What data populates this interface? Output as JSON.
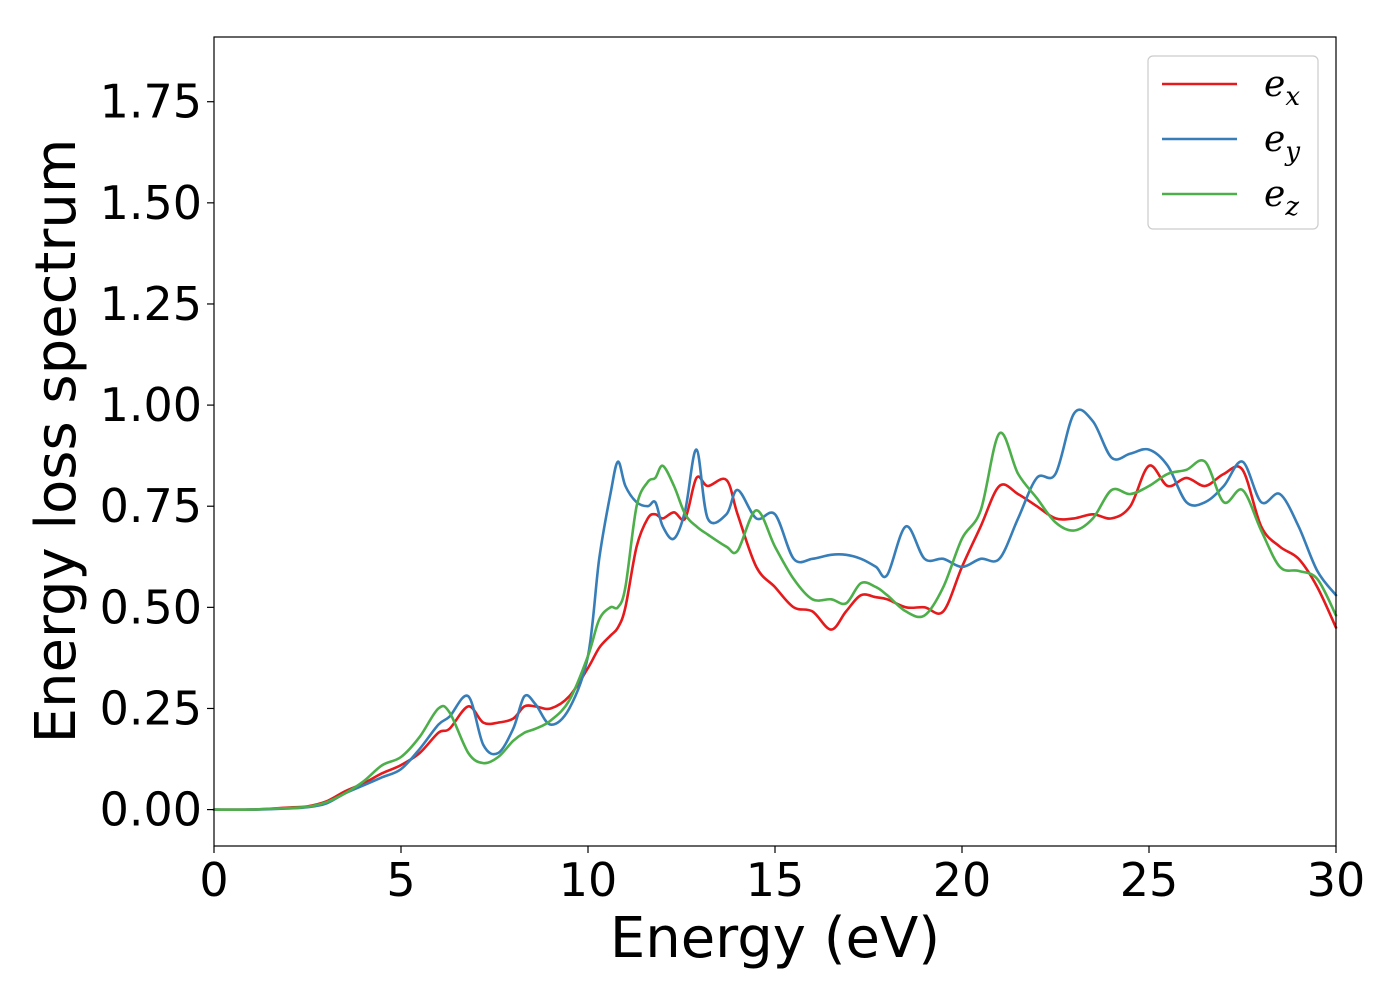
{
  "chart_data": {
    "type": "line",
    "title": "",
    "xlabel": "Energy (eV)",
    "ylabel": "Energy loss spectrum",
    "xlim": [
      0,
      30
    ],
    "ylim": [
      -0.09,
      1.91
    ],
    "xticks": [
      0,
      5,
      10,
      15,
      20,
      25,
      30
    ],
    "xtick_labels": [
      "0",
      "5",
      "10",
      "15",
      "20",
      "25",
      "30"
    ],
    "yticks": [
      0.0,
      0.25,
      0.5,
      0.75,
      1.0,
      1.25,
      1.5,
      1.75
    ],
    "ytick_labels": [
      "0.00",
      "0.25",
      "0.50",
      "0.75",
      "1.00",
      "1.25",
      "1.50",
      "1.75"
    ],
    "grid": false,
    "legend_position": "top-right",
    "series": [
      {
        "name": "e_x",
        "label_base": "e",
        "label_sub": "x",
        "color": "#e41a1c",
        "x": [
          0,
          1,
          2,
          2.5,
          3,
          3.5,
          4,
          4.5,
          5,
          5.5,
          6,
          6.3,
          6.8,
          7.2,
          7.6,
          8,
          8.3,
          8.6,
          9,
          9.5,
          10,
          10.3,
          10.6,
          10.8,
          11,
          11.3,
          11.6,
          11.8,
          12,
          12.3,
          12.6,
          12.9,
          13.2,
          13.7,
          14,
          14.5,
          15,
          15.5,
          16,
          16.5,
          16.9,
          17.3,
          17.7,
          18,
          18.5,
          19,
          19.5,
          20,
          20.5,
          21,
          21.5,
          22,
          22.5,
          23,
          23.5,
          24,
          24.5,
          25,
          25.5,
          26,
          26.5,
          27,
          27.5,
          28,
          28.5,
          29,
          29.5,
          30
        ],
        "y": [
          0.0,
          0.0,
          0.005,
          0.008,
          0.02,
          0.045,
          0.065,
          0.09,
          0.11,
          0.14,
          0.19,
          0.2,
          0.255,
          0.215,
          0.215,
          0.225,
          0.255,
          0.255,
          0.25,
          0.28,
          0.35,
          0.4,
          0.43,
          0.45,
          0.5,
          0.65,
          0.72,
          0.73,
          0.72,
          0.735,
          0.72,
          0.82,
          0.8,
          0.815,
          0.73,
          0.6,
          0.55,
          0.5,
          0.49,
          0.445,
          0.49,
          0.53,
          0.525,
          0.52,
          0.5,
          0.5,
          0.49,
          0.6,
          0.7,
          0.8,
          0.78,
          0.75,
          0.72,
          0.72,
          0.73,
          0.72,
          0.75,
          0.85,
          0.8,
          0.82,
          0.8,
          0.83,
          0.84,
          0.7,
          0.65,
          0.62,
          0.55,
          0.45
        ]
      },
      {
        "name": "e_y",
        "label_base": "e",
        "label_sub": "y",
        "color": "#377eb8",
        "x": [
          0,
          1,
          2,
          2.5,
          3,
          3.5,
          4,
          4.5,
          5,
          5.5,
          6,
          6.3,
          6.8,
          7.2,
          7.6,
          8,
          8.3,
          8.6,
          9,
          9.5,
          10,
          10.3,
          10.6,
          10.8,
          11,
          11.3,
          11.6,
          11.8,
          12,
          12.3,
          12.6,
          12.9,
          13.2,
          13.7,
          14,
          14.5,
          15,
          15.5,
          16,
          16.5,
          16.9,
          17.3,
          17.7,
          18,
          18.5,
          19,
          19.5,
          20,
          20.5,
          21,
          21.5,
          22,
          22.5,
          23,
          23.5,
          24,
          24.5,
          25,
          25.5,
          26,
          26.5,
          27,
          27.5,
          28,
          28.5,
          29,
          29.5,
          30
        ],
        "y": [
          0.0,
          0.0,
          0.003,
          0.006,
          0.015,
          0.04,
          0.06,
          0.08,
          0.1,
          0.15,
          0.21,
          0.23,
          0.28,
          0.16,
          0.14,
          0.2,
          0.28,
          0.26,
          0.21,
          0.25,
          0.38,
          0.62,
          0.78,
          0.86,
          0.8,
          0.76,
          0.75,
          0.76,
          0.7,
          0.67,
          0.74,
          0.89,
          0.72,
          0.73,
          0.79,
          0.72,
          0.73,
          0.62,
          0.62,
          0.63,
          0.63,
          0.62,
          0.6,
          0.58,
          0.7,
          0.62,
          0.62,
          0.6,
          0.62,
          0.62,
          0.72,
          0.82,
          0.83,
          0.98,
          0.96,
          0.87,
          0.88,
          0.89,
          0.85,
          0.76,
          0.76,
          0.8,
          0.86,
          0.76,
          0.78,
          0.7,
          0.59,
          0.53
        ]
      },
      {
        "name": "e_z",
        "label_base": "e",
        "label_sub": "z",
        "color": "#4daf4a",
        "x": [
          0,
          1,
          2,
          2.5,
          3,
          3.5,
          4,
          4.5,
          5,
          5.5,
          6,
          6.3,
          6.8,
          7.2,
          7.6,
          8,
          8.3,
          8.6,
          9,
          9.5,
          10,
          10.3,
          10.6,
          10.8,
          11,
          11.3,
          11.6,
          11.8,
          12,
          12.3,
          12.6,
          12.9,
          13.2,
          13.7,
          14,
          14.5,
          15,
          15.5,
          16,
          16.5,
          16.9,
          17.3,
          17.7,
          18,
          18.5,
          19,
          19.5,
          20,
          20.5,
          21,
          21.5,
          22,
          22.5,
          23,
          23.5,
          24,
          24.5,
          25,
          25.5,
          26,
          26.5,
          27,
          27.5,
          28,
          28.5,
          29,
          29.5,
          30
        ],
        "y": [
          0.0,
          0.0,
          0.004,
          0.007,
          0.018,
          0.04,
          0.07,
          0.11,
          0.13,
          0.18,
          0.25,
          0.24,
          0.14,
          0.115,
          0.13,
          0.17,
          0.19,
          0.2,
          0.22,
          0.27,
          0.38,
          0.47,
          0.5,
          0.5,
          0.55,
          0.75,
          0.81,
          0.82,
          0.85,
          0.8,
          0.73,
          0.7,
          0.68,
          0.65,
          0.64,
          0.74,
          0.65,
          0.57,
          0.52,
          0.52,
          0.51,
          0.56,
          0.55,
          0.53,
          0.49,
          0.48,
          0.55,
          0.67,
          0.74,
          0.93,
          0.83,
          0.77,
          0.71,
          0.69,
          0.72,
          0.79,
          0.78,
          0.8,
          0.83,
          0.84,
          0.86,
          0.76,
          0.79,
          0.69,
          0.6,
          0.59,
          0.57,
          0.48
        ]
      }
    ]
  }
}
